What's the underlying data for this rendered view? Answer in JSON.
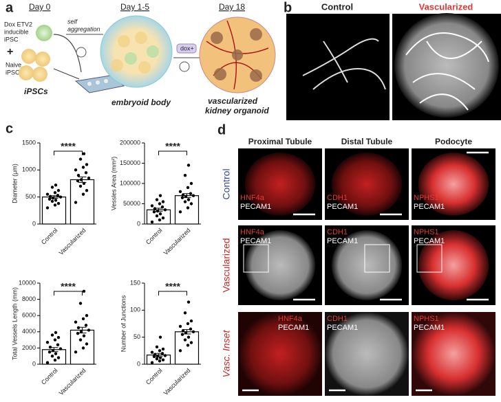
{
  "panels": {
    "a": {
      "label": "a",
      "days": [
        "Day 0",
        "Day 1-5",
        "Day 18"
      ],
      "dox_cell": [
        "Dox ETV2",
        "inducible",
        "iPSC"
      ],
      "plus": "+",
      "naive_cell": [
        "Naive",
        "iPSC"
      ],
      "self_aggregation": [
        "self",
        "aggregation"
      ],
      "dox": "dox+",
      "ipscs": "iPSCs",
      "embryoid_body": "embryoid body",
      "organoid": [
        "vascularized",
        "kidney organoid"
      ]
    },
    "b": {
      "label": "b",
      "control": "Control",
      "vascularized": "Vascularized"
    },
    "c": {
      "label": "c"
    },
    "d": {
      "label": "d",
      "columns": [
        "Proximal Tubule",
        "Distal Tubule",
        "Podocyte"
      ],
      "rows": [
        "Control",
        "Vascularized",
        "Vasc. Inset"
      ],
      "cells": [
        [
          {
            "marker": "HNF4a",
            "stain": "PECAM1"
          },
          {
            "marker": "CDH1",
            "stain": "PECAM1"
          },
          {
            "marker": "NPHS1",
            "stain": "PECAM1"
          }
        ],
        [
          {
            "marker": "HNF4a",
            "stain": "PECAM1"
          },
          {
            "marker": "CDH1",
            "stain": "PECAM1"
          },
          {
            "marker": "NPHS1",
            "stain": "PECAM1"
          }
        ],
        [
          {
            "marker": "HNF4a",
            "stain": "PECAM1"
          },
          {
            "marker": "CDH1",
            "stain": "PECAM1"
          },
          {
            "marker": "NPHS1",
            "stain": "PECAM1"
          }
        ]
      ]
    }
  },
  "chart_data": [
    {
      "type": "bar",
      "y_label": "Diameter (μm)",
      "categories": [
        "Control",
        "Vascularized"
      ],
      "values": [
        500,
        820
      ],
      "errors": [
        25,
        50
      ],
      "points": [
        [
          300,
          350,
          380,
          420,
          440,
          460,
          480,
          500,
          510,
          530,
          550,
          580,
          620,
          680,
          720
        ],
        [
          400,
          550,
          620,
          700,
          750,
          800,
          820,
          850,
          900,
          950,
          1000,
          1050,
          1100,
          1200,
          1300
        ]
      ],
      "ylim": [
        0,
        1500
      ],
      "yticks": [
        0,
        500,
        1000,
        1500
      ],
      "annotation": "****",
      "color": "#000000"
    },
    {
      "type": "bar",
      "y_label": "Vessles Area (mm²)",
      "categories": [
        "Control",
        "Vascularized"
      ],
      "values": [
        35000,
        70000
      ],
      "errors": [
        4000,
        5000
      ],
      "points": [
        [
          5000,
          10000,
          15000,
          20000,
          25000,
          30000,
          32000,
          35000,
          38000,
          42000,
          45000,
          50000,
          55000,
          60000,
          70000
        ],
        [
          30000,
          40000,
          50000,
          55000,
          60000,
          65000,
          68000,
          70000,
          72000,
          75000,
          80000,
          90000,
          100000,
          120000,
          145000
        ]
      ],
      "ylim": [
        0,
        200000
      ],
      "yticks": [
        0,
        50000,
        100000,
        150000,
        200000
      ],
      "annotation": "****",
      "color": "#000000"
    },
    {
      "type": "bar",
      "y_label": "Total Vessels Length (mm)",
      "categories": [
        "Control",
        "Vascularized"
      ],
      "values": [
        1800,
        4200
      ],
      "errors": [
        250,
        350
      ],
      "points": [
        [
          200,
          500,
          800,
          1000,
          1300,
          1500,
          1700,
          1900,
          2100,
          2400,
          2700,
          3000,
          3300,
          3600,
          3900
        ],
        [
          1500,
          2000,
          2500,
          3000,
          3500,
          3800,
          4000,
          4200,
          4500,
          4800,
          5200,
          5600,
          6000,
          7500,
          9000
        ]
      ],
      "ylim": [
        0,
        10000
      ],
      "yticks": [
        0,
        2000,
        4000,
        6000,
        8000,
        10000
      ],
      "annotation": "****",
      "color": "#000000"
    },
    {
      "type": "bar",
      "y_label": "Number of Junctions",
      "categories": [
        "Control",
        "Vascularized"
      ],
      "values": [
        17,
        60
      ],
      "errors": [
        3,
        4
      ],
      "points": [
        [
          3,
          6,
          8,
          10,
          12,
          14,
          15,
          16,
          18,
          20,
          22,
          25,
          28,
          32,
          50
        ],
        [
          25,
          35,
          40,
          45,
          50,
          55,
          58,
          60,
          62,
          65,
          70,
          75,
          80,
          95,
          115
        ]
      ],
      "ylim": [
        0,
        150
      ],
      "yticks": [
        0,
        50,
        100,
        150
      ],
      "annotation": "****",
      "color": "#000000"
    }
  ]
}
